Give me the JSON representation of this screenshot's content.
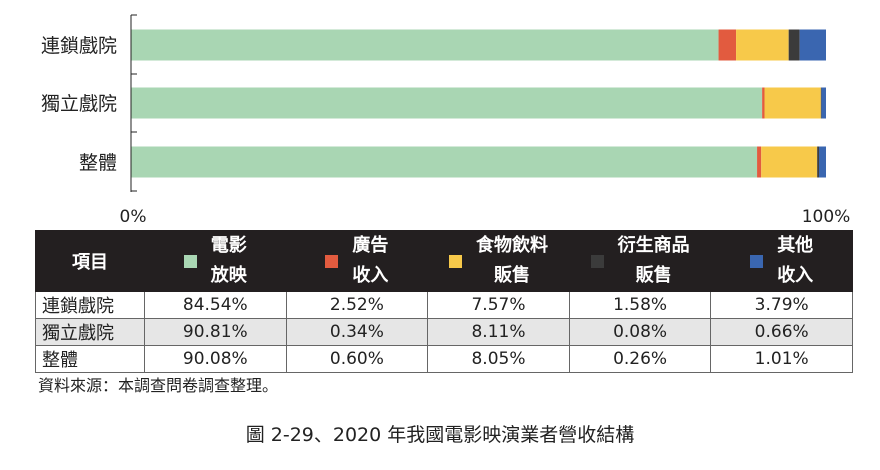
{
  "chart_data": {
    "type": "bar",
    "orientation": "horizontal",
    "stacked": true,
    "categories": [
      "連鎖戲院",
      "獨立戲院",
      "整體"
    ],
    "series": [
      {
        "name": "電影放映",
        "color": "#a9d6b3",
        "values": [
          84.54,
          90.81,
          90.08
        ]
      },
      {
        "name": "廣告收入",
        "color": "#e25b3f",
        "values": [
          2.52,
          0.34,
          0.6
        ]
      },
      {
        "name": "食物飲料販售",
        "color": "#f7c94a",
        "values": [
          7.57,
          8.11,
          8.05
        ]
      },
      {
        "name": "衍生商品販售",
        "color": "#3b3b3b",
        "values": [
          1.58,
          0.08,
          0.26
        ]
      },
      {
        "name": "其他收入",
        "color": "#3a66b0",
        "values": [
          3.79,
          0.66,
          1.01
        ]
      }
    ],
    "xlim": [
      0,
      100
    ],
    "x_tick_labels": [
      "0%",
      "100%"
    ],
    "grid": false
  },
  "table": {
    "header_first": "項目",
    "headers": [
      {
        "line1": "電影",
        "line2": "放映",
        "color": "#a9d6b3"
      },
      {
        "line1": "廣告",
        "line2": "收入",
        "color": "#e25b3f"
      },
      {
        "line1": "食物飲料",
        "line2": "販售",
        "color": "#f7c94a"
      },
      {
        "line1": "衍生商品",
        "line2": "販售",
        "color": "#3b3b3b"
      },
      {
        "line1": "其他",
        "line2": "收入",
        "color": "#3a66b0"
      }
    ],
    "rows": [
      {
        "name": "連鎖戲院",
        "values": [
          "84.54%",
          "2.52%",
          "7.57%",
          "1.58%",
          "3.79%"
        ]
      },
      {
        "name": "獨立戲院",
        "values": [
          "90.81%",
          "0.34%",
          "8.11%",
          "0.08%",
          "0.66%"
        ]
      },
      {
        "name": "整體",
        "values": [
          "90.08%",
          "0.60%",
          "8.05%",
          "0.26%",
          "1.01%"
        ]
      }
    ]
  },
  "source": "資料來源：本調查問卷調查整理。",
  "caption": "圖 2-29、2020 年我國電影映演業者營收結構"
}
